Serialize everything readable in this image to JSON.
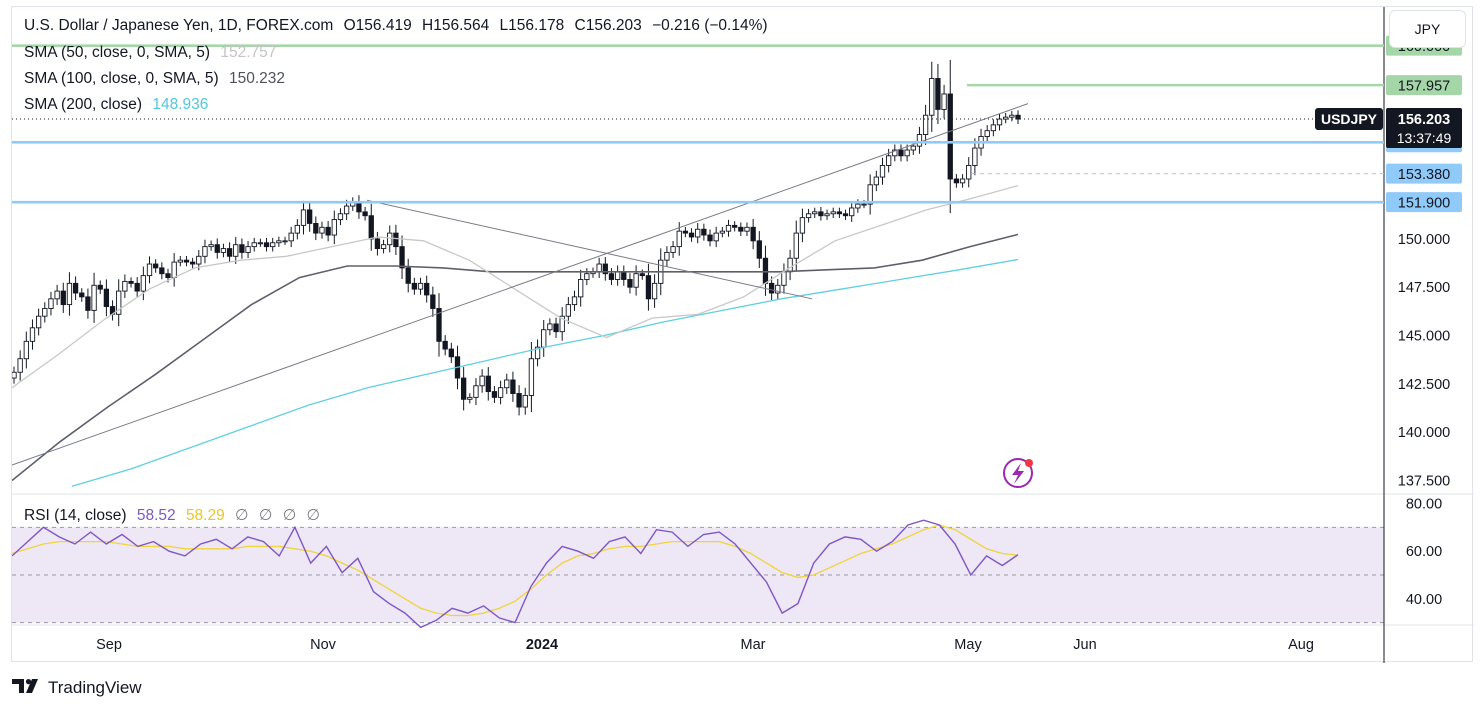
{
  "header": {
    "symbol_title": "U.S. Dollar / Japanese Yen, 1D, FOREX.com",
    "ohlc": {
      "o_label": "O",
      "o_value": "156.419",
      "h_label": "H",
      "h_value": "156.564",
      "l_label": "L",
      "l_value": "156.178",
      "c_label": "C",
      "c_value": "156.203",
      "change": "−0.216 (−0.14%)"
    },
    "indicators": [
      {
        "label": "SMA (50, close, 0, SMA, 5)",
        "value": "152.757",
        "color": "#c8c8c8"
      },
      {
        "label": "SMA (100, close, 0, SMA, 5)",
        "value": "150.232",
        "color": "#5d606b"
      },
      {
        "label": "SMA (200, close)",
        "value": "148.936",
        "color": "#5fd0e0"
      }
    ]
  },
  "currency_button": "JPY",
  "rsi": {
    "label": "RSI (14, close)",
    "value": "58.52",
    "ma_value": "58.29",
    "extra": [
      "∅",
      "∅",
      "∅",
      "∅"
    ],
    "axis_labels": [
      "80.00",
      "60.00",
      "40.00"
    ],
    "colors": {
      "rsi": "#7e57c2",
      "ma": "#f0d43a",
      "band": "#ede7f6"
    }
  },
  "price_axis": {
    "labels": [
      "150.000",
      "147.500",
      "145.000",
      "142.500",
      "140.000",
      "137.500"
    ],
    "levels": [
      {
        "text": "160.000",
        "value": 160.0,
        "color": "#a5d6a7"
      },
      {
        "text": "157.957",
        "value": 157.957,
        "color": "#a5d6a7"
      },
      {
        "text": "155.000",
        "value": 155.0,
        "color": "#90caf9"
      },
      {
        "text": "153.380",
        "value": 153.38,
        "color": "#90caf9"
      },
      {
        "text": "151.900",
        "value": 151.9,
        "color": "#90caf9"
      }
    ],
    "current": {
      "ticker": "USDJPY",
      "price": "156.203",
      "countdown": "13:37:49",
      "value": 156.203
    }
  },
  "time_axis": {
    "labels": [
      {
        "text": "Sep",
        "bold": false
      },
      {
        "text": "Nov",
        "bold": false
      },
      {
        "text": "2024",
        "bold": true
      },
      {
        "text": "Mar",
        "bold": false
      },
      {
        "text": "May",
        "bold": false
      },
      {
        "text": "Jun",
        "bold": false
      },
      {
        "text": "Aug",
        "bold": false
      }
    ]
  },
  "footer": {
    "brand": "TradingView"
  },
  "chart_data": {
    "type": "candlestick",
    "title": "U.S. Dollar / Japanese Yen, 1D, FOREX.com",
    "ylim": [
      136.8,
      162.0
    ],
    "candles_close": [
      143.1,
      143.8,
      144.7,
      145.4,
      146.0,
      146.4,
      146.9,
      147.3,
      146.6,
      147.7,
      147.2,
      147.0,
      146.3,
      147.6,
      147.4,
      146.5,
      146.1,
      147.3,
      147.8,
      147.7,
      147.3,
      148.1,
      148.7,
      148.5,
      148.2,
      148.0,
      148.8,
      148.9,
      148.8,
      148.7,
      149.1,
      149.6,
      149.7,
      149.3,
      149.5,
      149.1,
      149.7,
      149.3,
      149.6,
      149.8,
      149.8,
      149.6,
      149.8,
      149.9,
      149.9,
      150.3,
      150.7,
      151.5,
      150.8,
      150.3,
      150.6,
      150.2,
      151.0,
      151.3,
      151.7,
      151.9,
      151.4,
      151.2,
      150.0,
      149.5,
      149.7,
      150.3,
      149.6,
      148.5,
      147.7,
      147.4,
      147.7,
      147.1,
      146.4,
      144.7,
      144.3,
      143.9,
      142.8,
      141.7,
      141.8,
      142.4,
      142.9,
      142.1,
      141.8,
      142.3,
      142.7,
      142.0,
      141.3,
      141.9,
      143.8,
      144.4,
      145.3,
      145.6,
      145.2,
      146.0,
      146.6,
      147.0,
      147.9,
      148.2,
      148.3,
      148.7,
      148.2,
      147.9,
      148.3,
      147.9,
      147.5,
      148.2,
      148.1,
      146.9,
      147.7,
      148.9,
      149.3,
      149.6,
      150.4,
      150.3,
      150.1,
      150.5,
      150.2,
      149.9,
      150.3,
      150.4,
      150.7,
      150.6,
      150.4,
      150.6,
      149.9,
      149.0,
      147.7,
      147.2,
      147.6,
      148.3,
      149.0,
      150.3,
      151.1,
      151.3,
      151.4,
      151.2,
      151.3,
      151.4,
      151.3,
      151.2,
      151.6,
      151.8,
      151.8,
      152.8,
      153.2,
      153.8,
      154.3,
      154.6,
      154.3,
      154.6,
      154.8,
      155.4,
      156.4,
      158.3,
      156.7,
      157.5,
      153.1,
      152.9,
      153.1,
      153.8,
      154.7,
      155.3,
      155.6,
      155.9,
      156.2,
      156.3,
      156.4,
      156.2
    ],
    "sma50": [
      142.3,
      144.0,
      145.8,
      147.4,
      148.5,
      148.9,
      149.1,
      149.6,
      150.1,
      149.9,
      148.9,
      147.4,
      145.9,
      144.9,
      145.9,
      146.1,
      147.0,
      148.5,
      149.9,
      150.7,
      151.5,
      152.1,
      152.757
    ],
    "sma100": [
      137.5,
      139.5,
      141.3,
      143.0,
      144.8,
      146.6,
      148.0,
      148.6,
      148.6,
      148.5,
      148.3,
      148.3,
      148.3,
      148.3,
      148.3,
      148.3,
      148.3,
      148.4,
      148.5,
      148.9,
      149.6,
      150.232
    ],
    "sma200": [
      137.2,
      138.1,
      139.2,
      140.3,
      141.4,
      142.3,
      143.0,
      143.7,
      144.4,
      145.0,
      145.7,
      146.3,
      146.9,
      147.4,
      147.9,
      148.4,
      148.936
    ],
    "rsi": [
      58,
      64,
      70,
      66,
      63,
      68,
      63,
      67,
      62,
      64,
      60,
      58,
      63,
      65,
      61,
      66,
      64,
      58,
      70,
      55,
      62,
      51,
      57,
      43,
      38,
      34,
      28,
      31,
      36,
      34,
      37,
      32,
      30,
      45,
      55,
      62,
      60,
      57,
      64,
      66,
      59,
      69,
      68,
      62,
      67,
      68,
      63,
      55,
      47,
      34,
      38,
      55,
      63,
      66,
      65,
      60,
      64,
      71,
      73,
      71,
      63,
      50,
      58,
      54,
      58.52
    ],
    "rsi_ma": [
      59,
      61,
      63,
      64,
      64,
      64,
      64,
      63,
      62,
      62,
      62,
      61,
      61,
      61,
      61,
      62,
      62,
      62,
      61,
      60,
      58,
      55,
      52,
      48,
      44,
      40,
      36,
      34,
      33,
      33,
      34,
      36,
      39,
      44,
      50,
      55,
      58,
      59,
      61,
      62,
      62,
      63,
      64,
      64,
      64,
      64,
      62,
      59,
      55,
      51,
      49,
      50,
      53,
      56,
      59,
      61,
      63,
      66,
      69,
      71,
      69,
      65,
      61,
      59,
      58.29
    ],
    "rsi_ylim": [
      29,
      84
    ],
    "levels": [
      160.0,
      157.957,
      155.0,
      153.38,
      151.9
    ],
    "x_axis": [
      "Sep",
      "Nov",
      "2024",
      "Mar",
      "May",
      "Jun",
      "Aug"
    ]
  }
}
